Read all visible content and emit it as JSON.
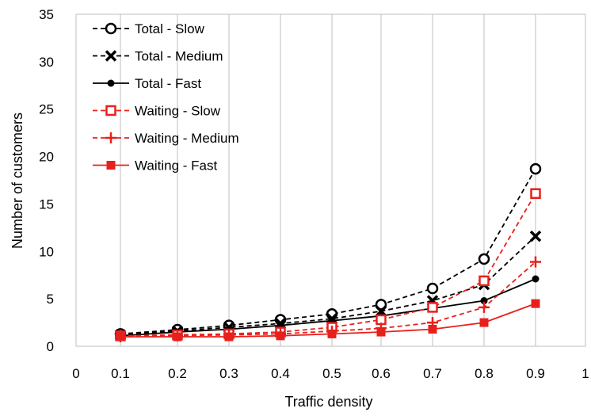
{
  "chart_data": {
    "type": "line",
    "title": "",
    "xlabel": "Traffic density",
    "ylabel": "Number of customers",
    "xlim": [
      0,
      1
    ],
    "ylim": [
      0,
      35
    ],
    "xticks": [
      "0",
      "0.1",
      "0.2",
      "0.3",
      "0.4",
      "0.5",
      "0.6",
      "0.7",
      "0.8",
      "0.9",
      "1"
    ],
    "yticks": [
      "0",
      "5",
      "10",
      "15",
      "20",
      "25",
      "30",
      "35"
    ],
    "grid": "vertical",
    "legend_position": "top-left",
    "x": [
      0.1,
      0.2,
      0.3,
      0.4,
      0.5,
      0.6,
      0.7,
      0.8,
      0.9
    ],
    "series": [
      {
        "name": "Total - Slow",
        "color": "#000000",
        "dash": "dashed",
        "marker": "circle-open",
        "values": [
          1.3,
          1.75,
          2.2,
          2.8,
          3.4,
          4.4,
          6.1,
          9.2,
          18.7
        ]
      },
      {
        "name": "Total - Medium",
        "color": "#000000",
        "dash": "dashed",
        "marker": "x",
        "values": [
          1.2,
          1.6,
          2.0,
          2.4,
          2.9,
          3.7,
          4.8,
          6.5,
          11.6
        ]
      },
      {
        "name": "Total - Fast",
        "color": "#000000",
        "dash": "solid",
        "marker": "dot",
        "values": [
          1.1,
          1.5,
          1.8,
          2.2,
          2.7,
          3.2,
          4.0,
          4.8,
          7.1
        ]
      },
      {
        "name": "Waiting - Slow",
        "color": "#e8201c",
        "dash": "dashed",
        "marker": "square-open",
        "values": [
          1.1,
          1.2,
          1.3,
          1.5,
          2.0,
          2.8,
          4.1,
          6.9,
          16.1
        ]
      },
      {
        "name": "Waiting - Medium",
        "color": "#e8201c",
        "dash": "dashed",
        "marker": "plus",
        "values": [
          1.0,
          1.1,
          1.2,
          1.3,
          1.6,
          1.9,
          2.5,
          4.1,
          8.9
        ]
      },
      {
        "name": "Waiting - Fast",
        "color": "#e8201c",
        "dash": "solid",
        "marker": "square",
        "values": [
          1.0,
          1.0,
          1.0,
          1.1,
          1.3,
          1.5,
          1.8,
          2.5,
          4.5
        ]
      }
    ]
  }
}
